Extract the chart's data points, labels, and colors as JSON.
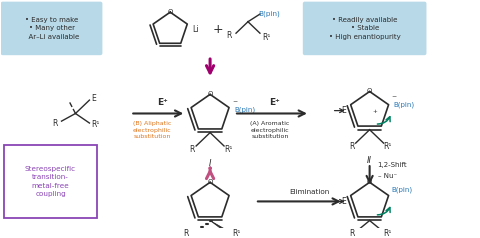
{
  "bg_color": "#ffffff",
  "box1_text": "• Easy to make\n• Many other\n  Ar–Li available",
  "box2_text": "• Readily available\n• Stable\n• High enantiopurity",
  "purple_text": "Stereospecific\ntransition-\nmetal-free\ncoupling",
  "blue_box_color": "#b8d9e8",
  "dark": "#2c2c2c",
  "blue": "#2878b5",
  "orange": "#e07820",
  "purple": "#8b45b5",
  "maroon": "#a0006e",
  "green": "#008060",
  "arrow_dark": "#3a3a3a"
}
